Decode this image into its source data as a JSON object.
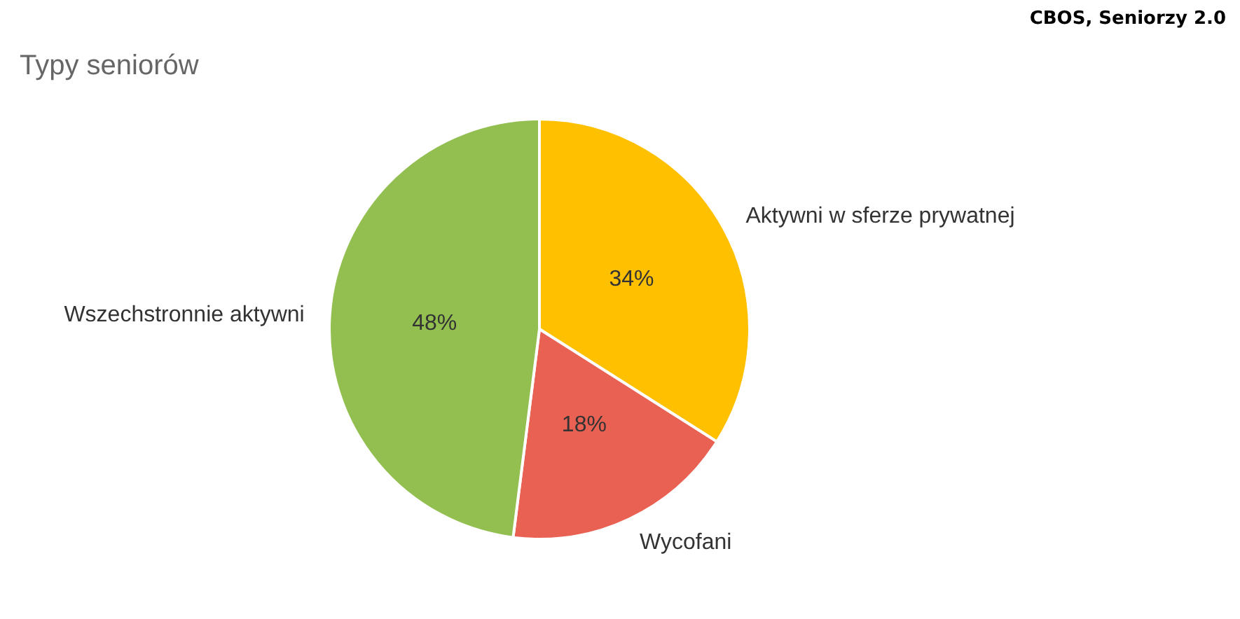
{
  "chart_data": {
    "type": "pie",
    "title": "Typy seniorów",
    "categories": [
      "Aktywni w sferze prywatnej",
      "Wycofani",
      "Wszechstronnie aktywni"
    ],
    "values": [
      34,
      18,
      48
    ],
    "value_labels": [
      "34%",
      "18%",
      "48%"
    ],
    "colors": [
      "#ffc000",
      "#e96153",
      "#92bf50"
    ],
    "annotations": [
      "CBOS, Seniorzy 2.0"
    ]
  }
}
